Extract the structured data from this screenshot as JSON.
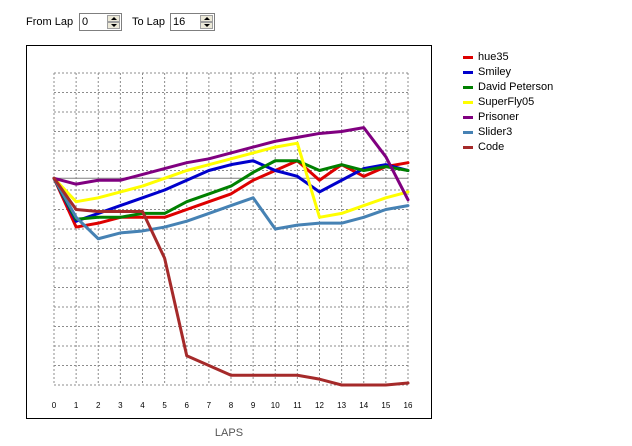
{
  "controls": {
    "from_lap_label": "From Lap",
    "from_lap_value": "0",
    "to_lap_label": "To Lap",
    "to_lap_value": "16"
  },
  "chart_data": {
    "type": "line",
    "xlabel": "LAPS",
    "x": [
      0,
      1,
      2,
      3,
      4,
      5,
      6,
      7,
      8,
      9,
      10,
      11,
      12,
      13,
      14,
      15,
      16
    ],
    "ylim": [
      0,
      16
    ],
    "grid": true,
    "legend_position": "right",
    "series": [
      {
        "name": "hue35",
        "color": "#dd0000",
        "values": [
          10.6,
          8.1,
          8.3,
          8.6,
          8.6,
          8.6,
          9.0,
          9.4,
          9.8,
          10.5,
          11.0,
          11.5,
          10.5,
          11.3,
          10.7,
          11.2,
          11.4
        ]
      },
      {
        "name": "Smiley",
        "color": "#0000cc",
        "values": [
          10.6,
          8.4,
          8.8,
          9.2,
          9.6,
          10.0,
          10.5,
          11.0,
          11.3,
          11.5,
          11.0,
          10.7,
          9.9,
          10.5,
          11.1,
          11.3,
          11.0
        ]
      },
      {
        "name": "David Peterson",
        "color": "#008000",
        "values": [
          10.6,
          8.5,
          8.6,
          8.6,
          8.8,
          8.8,
          9.4,
          9.8,
          10.2,
          10.9,
          11.5,
          11.5,
          11.0,
          11.3,
          11.0,
          11.2,
          11.0
        ]
      },
      {
        "name": "SuperFly05",
        "color": "#ffff00",
        "values": [
          10.6,
          9.4,
          9.6,
          9.9,
          10.2,
          10.6,
          11.0,
          11.3,
          11.6,
          11.9,
          12.2,
          12.4,
          8.6,
          8.8,
          9.2,
          9.6,
          9.9
        ]
      },
      {
        "name": "Prisoner",
        "color": "#800080",
        "values": [
          10.6,
          10.3,
          10.5,
          10.5,
          10.8,
          11.1,
          11.4,
          11.6,
          11.9,
          12.2,
          12.5,
          12.7,
          12.9,
          13.0,
          13.2,
          11.7,
          9.5
        ]
      },
      {
        "name": "Slider3",
        "color": "#4682b4",
        "values": [
          10.6,
          8.6,
          7.5,
          7.8,
          7.9,
          8.1,
          8.4,
          8.8,
          9.2,
          9.6,
          8.0,
          8.2,
          8.3,
          8.3,
          8.6,
          9.0,
          9.2
        ]
      },
      {
        "name": "Code",
        "color": "#a52a2a",
        "values": [
          10.6,
          9.0,
          8.9,
          8.9,
          8.9,
          6.5,
          1.5,
          1.0,
          0.5,
          0.5,
          0.5,
          0.5,
          0.3,
          0.0,
          0.0,
          0.0,
          0.1
        ]
      }
    ]
  }
}
